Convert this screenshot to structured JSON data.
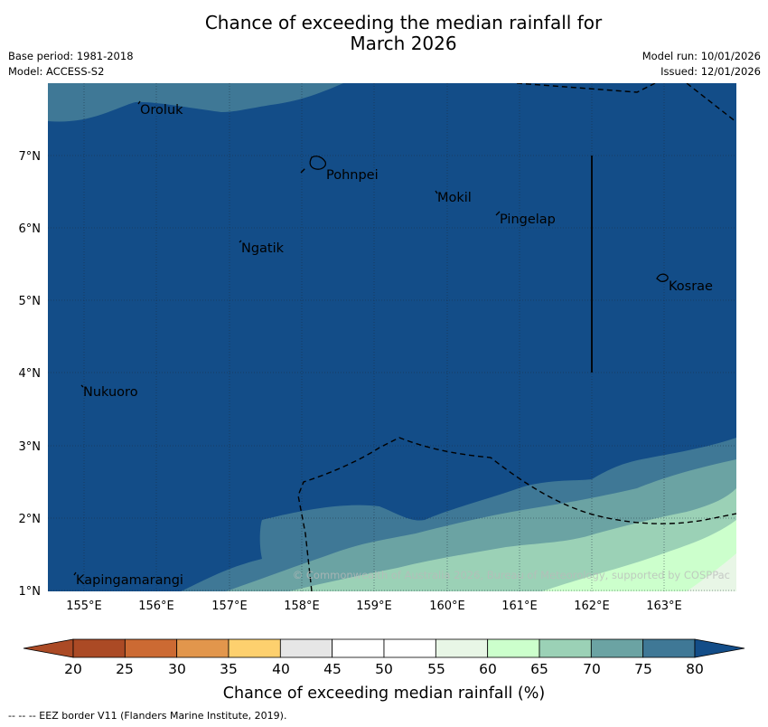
{
  "title": {
    "line1": "Chance of exceeding the median rainfall for",
    "line2": "March 2026"
  },
  "meta": {
    "base_period": "Base period: 1981-2018",
    "model": "Model: ACCESS-S2",
    "model_run": "Model run: 10/01/2026",
    "issued": "Issued: 12/01/2026"
  },
  "map": {
    "lon_ticks": [
      "155°E",
      "156°E",
      "157°E",
      "158°E",
      "159°E",
      "160°E",
      "161°E",
      "162°E",
      "163°E"
    ],
    "lat_ticks": [
      "7°N",
      "6°N",
      "5°N",
      "4°N",
      "3°N",
      "2°N",
      "1°N"
    ],
    "places": [
      "Oroluk",
      "Pohnpei",
      "Mokil",
      "Pingelap",
      "Ngatik",
      "Kosrae",
      "Nukuoro",
      "Kapingamarangi"
    ],
    "copyright": "© Commonwealth of Australia 2026, Bureau of Meteorology, supported by COSPPac"
  },
  "colorbar": {
    "ticks": [
      "20",
      "25",
      "30",
      "35",
      "40",
      "45",
      "50",
      "55",
      "60",
      "65",
      "70",
      "75",
      "80"
    ],
    "colors": [
      "#ab4a25",
      "#cc6a33",
      "#e2964c",
      "#fdd06e",
      "#e6e6e6",
      "#ffffff",
      "#ffffff",
      "#e8f6e6",
      "#ccffcc",
      "#9bd1b6",
      "#6ba3a3",
      "#3f7896",
      "#134d88"
    ],
    "title": "Chance of exceeding median rainfall (%)"
  },
  "footer": "-- -- -- EEZ border V11 (Flanders Marine Institute, 2019)."
}
